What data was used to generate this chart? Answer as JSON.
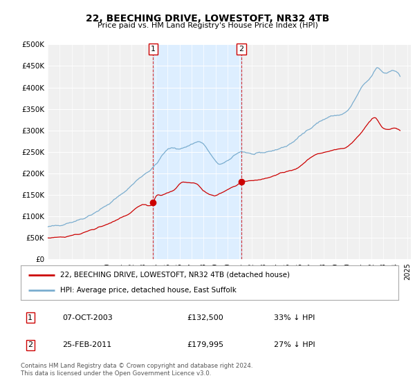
{
  "title": "22, BEECHING DRIVE, LOWESTOFT, NR32 4TB",
  "subtitle": "Price paid vs. HM Land Registry's House Price Index (HPI)",
  "ylim": [
    0,
    500000
  ],
  "yticks": [
    0,
    50000,
    100000,
    150000,
    200000,
    250000,
    300000,
    350000,
    400000,
    450000,
    500000
  ],
  "ytick_labels": [
    "£0",
    "£50K",
    "£100K",
    "£150K",
    "£200K",
    "£250K",
    "£300K",
    "£350K",
    "£400K",
    "£450K",
    "£500K"
  ],
  "background_color": "#ffffff",
  "plot_bg_color": "#f0f0f0",
  "red_color": "#cc0000",
  "blue_color": "#7aadcf",
  "shade_color": "#ddeeff",
  "marker1_price": 132500,
  "marker1_year": 2003.8,
  "marker2_price": 179995,
  "marker2_year": 2011.15,
  "legend_line1": "22, BEECHING DRIVE, LOWESTOFT, NR32 4TB (detached house)",
  "legend_line2": "HPI: Average price, detached house, East Suffolk",
  "footnote": "Contains HM Land Registry data © Crown copyright and database right 2024.\nThis data is licensed under the Open Government Licence v3.0.",
  "table_row1": [
    "1",
    "07-OCT-2003",
    "£132,500",
    "33% ↓ HPI"
  ],
  "table_row2": [
    "2",
    "25-FEB-2011",
    "£179,995",
    "27% ↓ HPI"
  ],
  "xmin": 1995.0,
  "xmax": 2025.3
}
